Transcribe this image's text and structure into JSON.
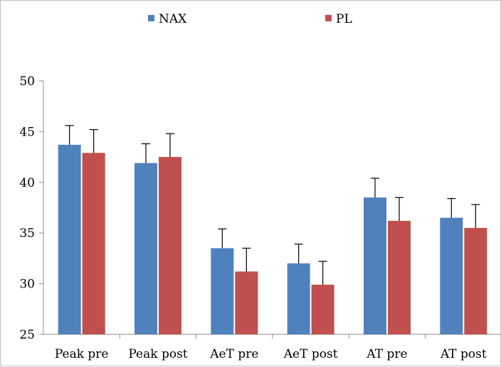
{
  "chart_data": {
    "type": "bar",
    "title": "",
    "xlabel": "",
    "ylabel": "",
    "categories": [
      "Peak pre",
      "Peak post",
      "AeT pre",
      "AeT post",
      "AT pre",
      "AT post"
    ],
    "series": [
      {
        "name": "NAX",
        "color": "#4f81bd",
        "values": [
          43.7,
          41.9,
          33.5,
          32.0,
          38.5,
          36.5
        ],
        "errors": [
          1.9,
          1.9,
          1.9,
          1.9,
          1.9,
          1.9
        ]
      },
      {
        "name": "PL",
        "color": "#c0504d",
        "values": [
          42.9,
          42.5,
          31.2,
          29.9,
          36.2,
          35.5
        ],
        "errors": [
          2.3,
          2.3,
          2.3,
          2.3,
          2.3,
          2.3
        ]
      }
    ],
    "ylim": [
      25,
      50
    ],
    "yticks": [
      25,
      30,
      35,
      40,
      45,
      50
    ],
    "grid": false,
    "legend_position": "top"
  }
}
